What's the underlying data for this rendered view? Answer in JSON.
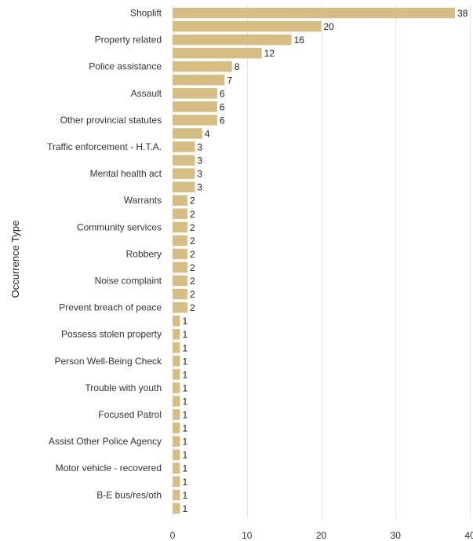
{
  "chart_data": {
    "type": "bar",
    "orientation": "horizontal",
    "ylabel": "Occurrence Type",
    "xlabel": "",
    "xlim": [
      0,
      40
    ],
    "xticks": [
      0,
      10,
      20,
      30,
      40
    ],
    "grid": true,
    "bar_color": "#d6bd84",
    "categories": [
      "Shoplift",
      "",
      "Property related",
      "",
      "Police assistance",
      "",
      "Assault",
      "",
      "Other provincial statutes",
      "",
      "Traffic enforcement - H.T.A.",
      "",
      "Mental health act",
      "",
      "Warrants",
      "",
      "Community services",
      "",
      "Robbery",
      "",
      "Noise complaint",
      "",
      "Prevent breach of peace",
      "",
      "Possess stolen property",
      "",
      "Person Well-Being Check",
      "",
      "Trouble with youth",
      "",
      "Focused Patrol",
      "",
      "Assist Other Police Agency",
      "",
      "Motor vehicle - recovered",
      "",
      "B-E bus/res/oth",
      ""
    ],
    "values": [
      38,
      20,
      16,
      12,
      8,
      7,
      6,
      6,
      6,
      4,
      3,
      3,
      3,
      3,
      2,
      2,
      2,
      2,
      2,
      2,
      2,
      2,
      2,
      1,
      1,
      1,
      1,
      1,
      1,
      1,
      1,
      1,
      1,
      1,
      1,
      1,
      1,
      1
    ]
  }
}
